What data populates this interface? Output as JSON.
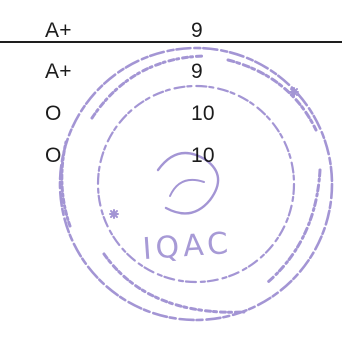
{
  "table": {
    "rows": [
      {
        "grade": "A+",
        "points": "9"
      },
      {
        "grade": "A+",
        "points": "9"
      },
      {
        "grade": "O",
        "points": "10"
      },
      {
        "grade": "O",
        "points": "10"
      }
    ]
  },
  "seal": {
    "color": "#8a78c8",
    "text": "IQAC"
  }
}
